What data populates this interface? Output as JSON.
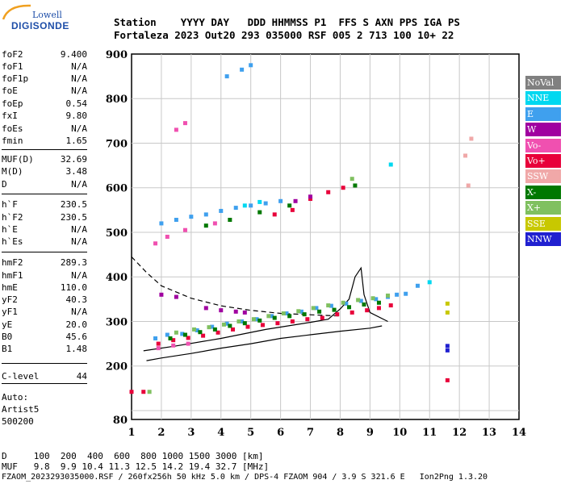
{
  "logo": {
    "line1": "Lowell",
    "line2": "DIGISONDE"
  },
  "header": {
    "row1": "Station    YYYY DAY   DDD HHMMSS P1  FFS S AXN PPS IGA PS",
    "row2": "Fortaleza 2023 Out20 293 035000 RSF 005 2 713 100 10+ 22"
  },
  "params": [
    {
      "key": "foF2",
      "value": "9.400"
    },
    {
      "key": "foF1",
      "value": "N/A"
    },
    {
      "key": "foF1p",
      "value": "N/A"
    },
    {
      "key": "foE",
      "value": "N/A"
    },
    {
      "key": "foEp",
      "value": "0.54"
    },
    {
      "key": "fxI",
      "value": "9.80"
    },
    {
      "key": "foEs",
      "value": "N/A"
    },
    {
      "key": "fmin",
      "value": "1.65"
    },
    {
      "key": "MUF(D)",
      "value": "32.69"
    },
    {
      "key": "M(D)",
      "value": "3.48"
    },
    {
      "key": "D",
      "value": "N/A"
    },
    {
      "key": "h`F",
      "value": "230.5"
    },
    {
      "key": "h`F2",
      "value": "230.5"
    },
    {
      "key": "h`E",
      "value": "N/A"
    },
    {
      "key": "h`Es",
      "value": "N/A"
    },
    {
      "key": "hmF2",
      "value": "289.3"
    },
    {
      "key": "hmF1",
      "value": "N/A"
    },
    {
      "key": "hmE",
      "value": "110.0"
    },
    {
      "key": "yF2",
      "value": "40.3"
    },
    {
      "key": "yF1",
      "value": "N/A"
    },
    {
      "key": "yE",
      "value": "20.0"
    },
    {
      "key": "B0",
      "value": "45.6"
    },
    {
      "key": "B1",
      "value": "1.48"
    },
    {
      "key": "C-level",
      "value": "44"
    }
  ],
  "auto": {
    "line1": "Auto:",
    "line2": "Artist5",
    "line3": "500200"
  },
  "bottom": {
    "row_d": "D     100  200  400  600  800 1000 1500 3000 [km]",
    "row_muf": "MUF   9.8  9.9 10.4 11.3 12.5 14.2 19.4 32.7 [MHz]",
    "footer": "FZAOM_2023293035000.RSF / 260fx256h 50 kHz 5.0 km / DPS-4 FZAOM 904 / 3.9 S 321.6 E   Ion2Png 1.3.20"
  },
  "legend": [
    {
      "label": "NoVal",
      "color": "#808080"
    },
    {
      "label": "NNE",
      "color": "#00d8f0"
    },
    {
      "label": "E",
      "color": "#3fa0ee"
    },
    {
      "label": "W",
      "color": "#a000a0"
    },
    {
      "label": "Vo-",
      "color": "#f050b0"
    },
    {
      "label": "Vo+",
      "color": "#e8003a"
    },
    {
      "label": "SSW",
      "color": "#f0a8a8"
    },
    {
      "label": "X-",
      "color": "#007800"
    },
    {
      "label": "X+",
      "color": "#80c060"
    },
    {
      "label": "SSE",
      "color": "#c8c800"
    },
    {
      "label": "NNW",
      "color": "#2020d0"
    }
  ],
  "chart_data": {
    "type": "scatter",
    "xlabel": "",
    "ylabel": "",
    "xlim": [
      1,
      14
    ],
    "ylim": [
      80,
      900
    ],
    "x_ticks": [
      "1",
      "2",
      "3",
      "4",
      "5",
      "6",
      "7",
      "8",
      "9",
      "10",
      "11",
      "12",
      "13",
      "14"
    ],
    "y_ticks": [
      "900",
      "800",
      "700",
      "600",
      "500",
      "400",
      "300",
      "200",
      "80"
    ],
    "grid": true,
    "legend_position": "right",
    "series": [
      {
        "name": "E",
        "color": "#3fa0ee",
        "points": [
          [
            1.8,
            262
          ],
          [
            2.2,
            270
          ],
          [
            2.7,
            272
          ],
          [
            3.2,
            280
          ],
          [
            3.7,
            288
          ],
          [
            4.2,
            295
          ],
          [
            4.7,
            300
          ],
          [
            5.2,
            305
          ],
          [
            5.7,
            312
          ],
          [
            6.2,
            318
          ],
          [
            6.7,
            322
          ],
          [
            7.2,
            330
          ],
          [
            7.7,
            335
          ],
          [
            8.2,
            340
          ],
          [
            8.7,
            346
          ],
          [
            9.2,
            350
          ],
          [
            9.6,
            355
          ],
          [
            9.9,
            360
          ],
          [
            10.2,
            362
          ],
          [
            10.6,
            380
          ],
          [
            2.0,
            520
          ],
          [
            2.5,
            528
          ],
          [
            3.0,
            535
          ],
          [
            3.5,
            540
          ],
          [
            4.0,
            548
          ],
          [
            4.5,
            555
          ],
          [
            5.0,
            560
          ],
          [
            5.5,
            565
          ],
          [
            6.0,
            570
          ],
          [
            4.2,
            850
          ],
          [
            4.7,
            865
          ],
          [
            5.0,
            875
          ]
        ]
      },
      {
        "name": "Vo+",
        "color": "#e8003a",
        "points": [
          [
            1.9,
            250
          ],
          [
            2.4,
            258
          ],
          [
            2.9,
            263
          ],
          [
            3.4,
            268
          ],
          [
            3.9,
            275
          ],
          [
            4.4,
            282
          ],
          [
            4.9,
            288
          ],
          [
            5.4,
            292
          ],
          [
            5.9,
            296
          ],
          [
            6.4,
            300
          ],
          [
            6.9,
            305
          ],
          [
            7.4,
            308
          ],
          [
            7.9,
            316
          ],
          [
            8.4,
            320
          ],
          [
            8.9,
            325
          ],
          [
            9.3,
            330
          ],
          [
            9.7,
            336
          ],
          [
            5.8,
            540
          ],
          [
            6.4,
            550
          ],
          [
            7.0,
            575
          ],
          [
            7.6,
            590
          ],
          [
            8.1,
            600
          ],
          [
            1.0,
            142
          ],
          [
            1.4,
            142
          ],
          [
            11.6,
            168
          ]
        ]
      },
      {
        "name": "X-",
        "color": "#007800",
        "points": [
          [
            2.3,
            262
          ],
          [
            2.8,
            270
          ],
          [
            3.3,
            276
          ],
          [
            3.8,
            282
          ],
          [
            4.3,
            290
          ],
          [
            4.8,
            296
          ],
          [
            5.3,
            302
          ],
          [
            5.8,
            308
          ],
          [
            6.3,
            312
          ],
          [
            6.8,
            316
          ],
          [
            7.3,
            322
          ],
          [
            7.8,
            326
          ],
          [
            8.3,
            332
          ],
          [
            8.8,
            338
          ],
          [
            9.3,
            342
          ],
          [
            3.5,
            515
          ],
          [
            4.3,
            528
          ],
          [
            5.3,
            545
          ],
          [
            6.3,
            560
          ],
          [
            8.5,
            605
          ]
        ]
      },
      {
        "name": "X+",
        "color": "#80c060",
        "points": [
          [
            2.5,
            275
          ],
          [
            3.1,
            282
          ],
          [
            3.6,
            287
          ],
          [
            4.1,
            293
          ],
          [
            4.6,
            300
          ],
          [
            5.1,
            305
          ],
          [
            5.6,
            312
          ],
          [
            6.1,
            318
          ],
          [
            6.6,
            323
          ],
          [
            7.1,
            330
          ],
          [
            7.6,
            336
          ],
          [
            8.1,
            342
          ],
          [
            8.6,
            348
          ],
          [
            9.1,
            352
          ],
          [
            9.6,
            358
          ],
          [
            1.6,
            142
          ],
          [
            8.4,
            620
          ]
        ]
      },
      {
        "name": "Vo-",
        "color": "#f050b0",
        "points": [
          [
            1.9,
            240
          ],
          [
            2.4,
            246
          ],
          [
            2.9,
            250
          ],
          [
            1.8,
            475
          ],
          [
            2.2,
            490
          ],
          [
            2.8,
            505
          ],
          [
            3.8,
            520
          ],
          [
            2.5,
            730
          ],
          [
            2.8,
            745
          ]
        ]
      },
      {
        "name": "W",
        "color": "#a000a0",
        "points": [
          [
            2.0,
            360
          ],
          [
            2.5,
            355
          ],
          [
            3.5,
            330
          ],
          [
            4.0,
            325
          ],
          [
            4.5,
            322
          ],
          [
            4.8,
            320
          ],
          [
            7.0,
            580
          ],
          [
            6.5,
            570
          ]
        ]
      },
      {
        "name": "NNE",
        "color": "#00d8f0",
        "points": [
          [
            4.8,
            560
          ],
          [
            5.3,
            568
          ],
          [
            9.7,
            652
          ],
          [
            11.0,
            388
          ]
        ]
      },
      {
        "name": "SSW",
        "color": "#f0a8a8",
        "points": [
          [
            12.2,
            672
          ],
          [
            12.4,
            710
          ],
          [
            12.3,
            605
          ]
        ]
      },
      {
        "name": "SSE",
        "color": "#c8c800",
        "points": [
          [
            11.6,
            340
          ],
          [
            11.6,
            320
          ]
        ]
      },
      {
        "name": "NNW",
        "color": "#2020d0",
        "points": [
          [
            11.6,
            245
          ],
          [
            11.6,
            235
          ]
        ]
      }
    ],
    "lines": [
      {
        "name": "profile-solid",
        "style": "solid",
        "points": [
          [
            1.5,
            212
          ],
          [
            2.0,
            218
          ],
          [
            3.0,
            228
          ],
          [
            4.0,
            240
          ],
          [
            5.0,
            250
          ],
          [
            6.0,
            262
          ],
          [
            7.0,
            270
          ],
          [
            8.0,
            278
          ],
          [
            9.0,
            285
          ],
          [
            9.4,
            290
          ]
        ]
      },
      {
        "name": "dashed-curve",
        "style": "dashed",
        "points": [
          [
            1.0,
            445
          ],
          [
            1.5,
            410
          ],
          [
            2.0,
            380
          ],
          [
            3.0,
            352
          ],
          [
            4.0,
            335
          ],
          [
            5.0,
            325
          ],
          [
            6.0,
            318
          ],
          [
            7.0,
            315
          ],
          [
            8.0,
            312
          ]
        ]
      },
      {
        "name": "trace",
        "style": "solid",
        "points": [
          [
            1.4,
            234
          ],
          [
            2.5,
            245
          ],
          [
            4.0,
            262
          ],
          [
            5.5,
            282
          ],
          [
            7.0,
            298
          ],
          [
            7.6,
            305
          ],
          [
            8.0,
            328
          ],
          [
            8.3,
            350
          ],
          [
            8.5,
            400
          ],
          [
            8.7,
            420
          ],
          [
            8.8,
            360
          ],
          [
            9.0,
            320
          ],
          [
            9.6,
            300
          ]
        ]
      }
    ]
  }
}
